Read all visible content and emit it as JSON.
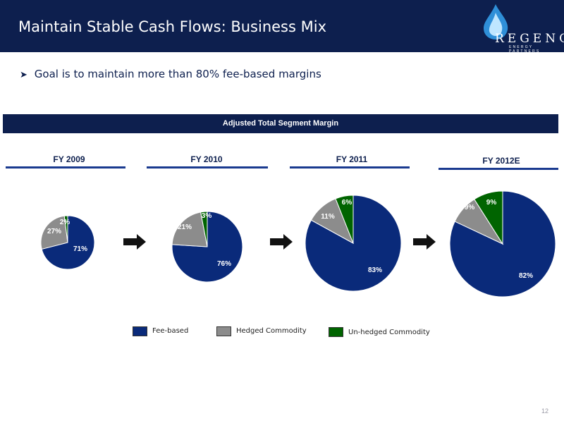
{
  "header": {
    "title": "Maintain Stable Cash Flows: Business Mix",
    "logo_name": "REGENCY",
    "logo_tagline": "ENERGY PARTNERS"
  },
  "bullet": {
    "text": "Goal is to maintain more than 80% fee-based margins"
  },
  "banner": {
    "label": "Adjusted Total Segment Margin"
  },
  "colors": {
    "navy": "#0d1f4e",
    "fee_based": "#0a2a7a",
    "hedged": "#8c8c8c",
    "unhedged": "#006400"
  },
  "chart_data": [
    {
      "type": "pie",
      "title": "FY 2009",
      "categories": [
        "Fee-based",
        "Hedged Commodity",
        "Un-hedged Commodity"
      ],
      "values": [
        71,
        27,
        2
      ],
      "labels": [
        "71%",
        "27%",
        "2%"
      ]
    },
    {
      "type": "pie",
      "title": "FY 2010",
      "categories": [
        "Fee-based",
        "Hedged Commodity",
        "Un-hedged Commodity"
      ],
      "values": [
        76,
        21,
        3
      ],
      "labels": [
        "76%",
        "21%",
        "3%"
      ]
    },
    {
      "type": "pie",
      "title": "FY 2011",
      "categories": [
        "Fee-based",
        "Hedged Commodity",
        "Un-hedged Commodity"
      ],
      "values": [
        83,
        11,
        6
      ],
      "labels": [
        "83%",
        "11%",
        "6%"
      ]
    },
    {
      "type": "pie",
      "title": "FY 2012E",
      "categories": [
        "Fee-based",
        "Hedged Commodity",
        "Un-hedged Commodity"
      ],
      "values": [
        82,
        9,
        9
      ],
      "labels": [
        "82%",
        "9%",
        "9%"
      ]
    }
  ],
  "legend": [
    {
      "label": "Fee-based"
    },
    {
      "label": "Hedged Commodity"
    },
    {
      "label": "Un-hedged Commodity"
    }
  ],
  "icons": {
    "logo": "flame-drop-icon",
    "bullet": "arrowhead-bullet-icon",
    "progression": "right-arrow-icon"
  },
  "page_number": "12"
}
